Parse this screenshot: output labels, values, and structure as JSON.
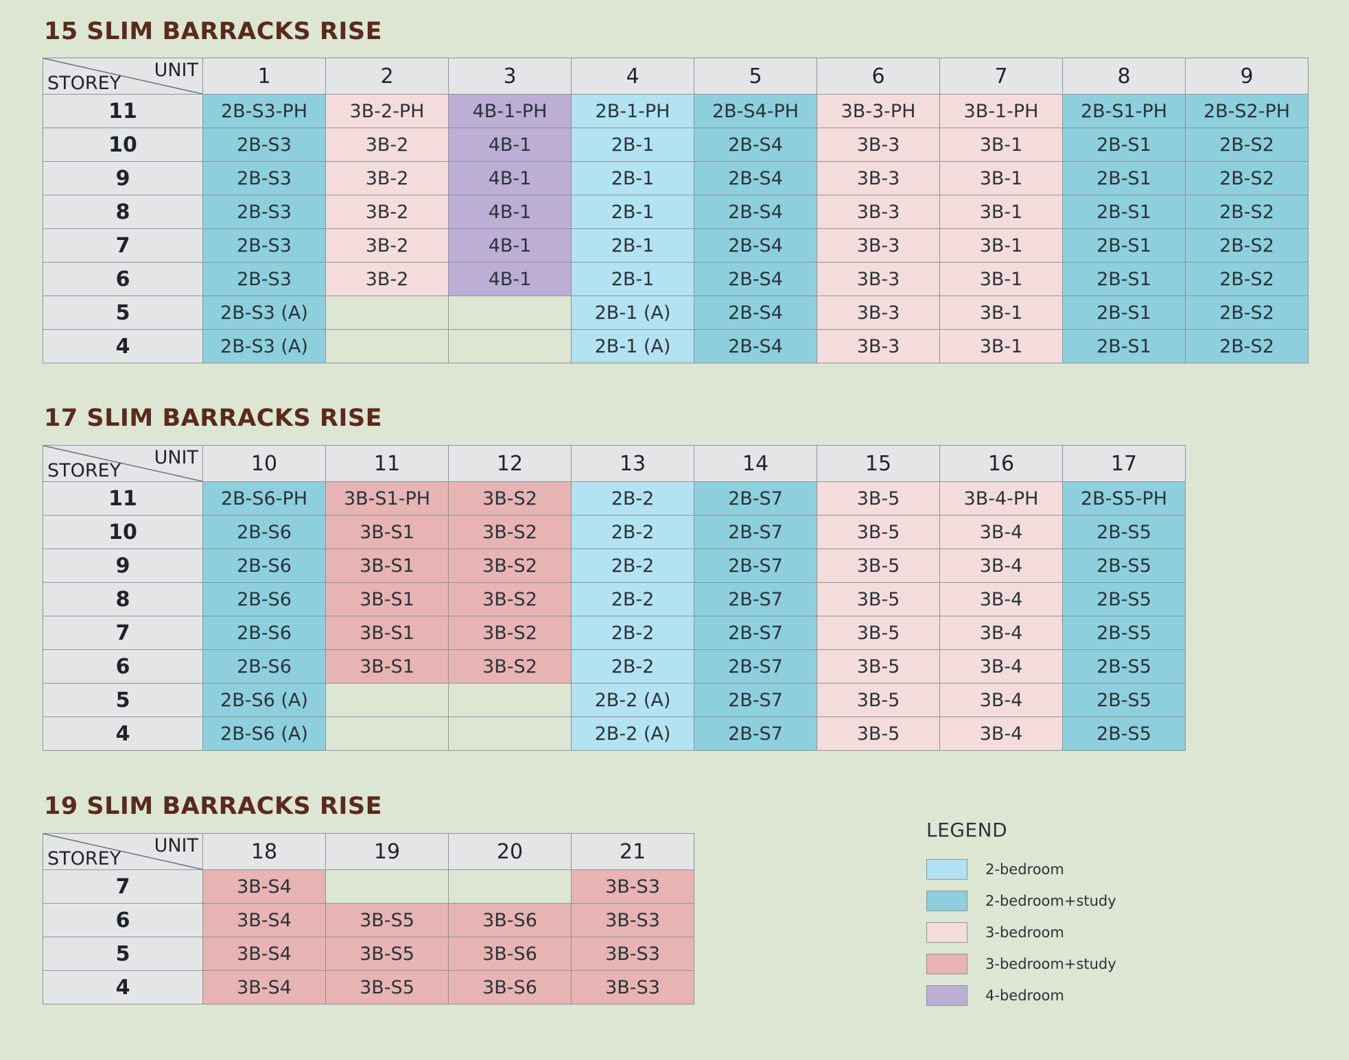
{
  "tables": [
    {
      "title": "15 SLIM BARRACKS RISE",
      "units": [
        "1",
        "2",
        "3",
        "4",
        "5",
        "6",
        "7",
        "8",
        "9"
      ],
      "rows": [
        {
          "storey": "11",
          "cells": [
            [
              "2B-S3-PH",
              "2bs"
            ],
            [
              "3B-2-PH",
              "3b"
            ],
            [
              "4B-1-PH",
              "4b"
            ],
            [
              "2B-1-PH",
              "2b"
            ],
            [
              "2B-S4-PH",
              "2bs"
            ],
            [
              "3B-3-PH",
              "3b"
            ],
            [
              "3B-1-PH",
              "3b"
            ],
            [
              "2B-S1-PH",
              "2bs"
            ],
            [
              "2B-S2-PH",
              "2bs"
            ]
          ]
        },
        {
          "storey": "10",
          "cells": [
            [
              "2B-S3",
              "2bs"
            ],
            [
              "3B-2",
              "3b"
            ],
            [
              "4B-1",
              "4b"
            ],
            [
              "2B-1",
              "2b"
            ],
            [
              "2B-S4",
              "2bs"
            ],
            [
              "3B-3",
              "3b"
            ],
            [
              "3B-1",
              "3b"
            ],
            [
              "2B-S1",
              "2bs"
            ],
            [
              "2B-S2",
              "2bs"
            ]
          ]
        },
        {
          "storey": "9",
          "cells": [
            [
              "2B-S3",
              "2bs"
            ],
            [
              "3B-2",
              "3b"
            ],
            [
              "4B-1",
              "4b"
            ],
            [
              "2B-1",
              "2b"
            ],
            [
              "2B-S4",
              "2bs"
            ],
            [
              "3B-3",
              "3b"
            ],
            [
              "3B-1",
              "3b"
            ],
            [
              "2B-S1",
              "2bs"
            ],
            [
              "2B-S2",
              "2bs"
            ]
          ]
        },
        {
          "storey": "8",
          "cells": [
            [
              "2B-S3",
              "2bs"
            ],
            [
              "3B-2",
              "3b"
            ],
            [
              "4B-1",
              "4b"
            ],
            [
              "2B-1",
              "2b"
            ],
            [
              "2B-S4",
              "2bs"
            ],
            [
              "3B-3",
              "3b"
            ],
            [
              "3B-1",
              "3b"
            ],
            [
              "2B-S1",
              "2bs"
            ],
            [
              "2B-S2",
              "2bs"
            ]
          ]
        },
        {
          "storey": "7",
          "cells": [
            [
              "2B-S3",
              "2bs"
            ],
            [
              "3B-2",
              "3b"
            ],
            [
              "4B-1",
              "4b"
            ],
            [
              "2B-1",
              "2b"
            ],
            [
              "2B-S4",
              "2bs"
            ],
            [
              "3B-3",
              "3b"
            ],
            [
              "3B-1",
              "3b"
            ],
            [
              "2B-S1",
              "2bs"
            ],
            [
              "2B-S2",
              "2bs"
            ]
          ]
        },
        {
          "storey": "6",
          "cells": [
            [
              "2B-S3",
              "2bs"
            ],
            [
              "3B-2",
              "3b"
            ],
            [
              "4B-1",
              "4b"
            ],
            [
              "2B-1",
              "2b"
            ],
            [
              "2B-S4",
              "2bs"
            ],
            [
              "3B-3",
              "3b"
            ],
            [
              "3B-1",
              "3b"
            ],
            [
              "2B-S1",
              "2bs"
            ],
            [
              "2B-S2",
              "2bs"
            ]
          ]
        },
        {
          "storey": "5",
          "cells": [
            [
              "2B-S3 (A)",
              "2bs"
            ],
            [
              "",
              "empty"
            ],
            [
              "",
              "empty"
            ],
            [
              "2B-1 (A)",
              "2b"
            ],
            [
              "2B-S4",
              "2bs"
            ],
            [
              "3B-3",
              "3b"
            ],
            [
              "3B-1",
              "3b"
            ],
            [
              "2B-S1",
              "2bs"
            ],
            [
              "2B-S2",
              "2bs"
            ]
          ]
        },
        {
          "storey": "4",
          "cells": [
            [
              "2B-S3 (A)",
              "2bs"
            ],
            [
              "",
              "empty"
            ],
            [
              "",
              "empty"
            ],
            [
              "2B-1 (A)",
              "2b"
            ],
            [
              "2B-S4",
              "2bs"
            ],
            [
              "3B-3",
              "3b"
            ],
            [
              "3B-1",
              "3b"
            ],
            [
              "2B-S1",
              "2bs"
            ],
            [
              "2B-S2",
              "2bs"
            ]
          ]
        }
      ]
    },
    {
      "title": "17 SLIM BARRACKS RISE",
      "units": [
        "10",
        "11",
        "12",
        "13",
        "14",
        "15",
        "16",
        "17"
      ],
      "rows": [
        {
          "storey": "11",
          "cells": [
            [
              "2B-S6-PH",
              "2bs"
            ],
            [
              "3B-S1-PH",
              "3bs"
            ],
            [
              "3B-S2",
              "3bs"
            ],
            [
              "2B-2",
              "2b"
            ],
            [
              "2B-S7",
              "2bs"
            ],
            [
              "3B-5",
              "3b"
            ],
            [
              "3B-4-PH",
              "3b"
            ],
            [
              "2B-S5-PH",
              "2bs"
            ]
          ]
        },
        {
          "storey": "10",
          "cells": [
            [
              "2B-S6",
              "2bs"
            ],
            [
              "3B-S1",
              "3bs"
            ],
            [
              "3B-S2",
              "3bs"
            ],
            [
              "2B-2",
              "2b"
            ],
            [
              "2B-S7",
              "2bs"
            ],
            [
              "3B-5",
              "3b"
            ],
            [
              "3B-4",
              "3b"
            ],
            [
              "2B-S5",
              "2bs"
            ]
          ]
        },
        {
          "storey": "9",
          "cells": [
            [
              "2B-S6",
              "2bs"
            ],
            [
              "3B-S1",
              "3bs"
            ],
            [
              "3B-S2",
              "3bs"
            ],
            [
              "2B-2",
              "2b"
            ],
            [
              "2B-S7",
              "2bs"
            ],
            [
              "3B-5",
              "3b"
            ],
            [
              "3B-4",
              "3b"
            ],
            [
              "2B-S5",
              "2bs"
            ]
          ]
        },
        {
          "storey": "8",
          "cells": [
            [
              "2B-S6",
              "2bs"
            ],
            [
              "3B-S1",
              "3bs"
            ],
            [
              "3B-S2",
              "3bs"
            ],
            [
              "2B-2",
              "2b"
            ],
            [
              "2B-S7",
              "2bs"
            ],
            [
              "3B-5",
              "3b"
            ],
            [
              "3B-4",
              "3b"
            ],
            [
              "2B-S5",
              "2bs"
            ]
          ]
        },
        {
          "storey": "7",
          "cells": [
            [
              "2B-S6",
              "2bs"
            ],
            [
              "3B-S1",
              "3bs"
            ],
            [
              "3B-S2",
              "3bs"
            ],
            [
              "2B-2",
              "2b"
            ],
            [
              "2B-S7",
              "2bs"
            ],
            [
              "3B-5",
              "3b"
            ],
            [
              "3B-4",
              "3b"
            ],
            [
              "2B-S5",
              "2bs"
            ]
          ]
        },
        {
          "storey": "6",
          "cells": [
            [
              "2B-S6",
              "2bs"
            ],
            [
              "3B-S1",
              "3bs"
            ],
            [
              "3B-S2",
              "3bs"
            ],
            [
              "2B-2",
              "2b"
            ],
            [
              "2B-S7",
              "2bs"
            ],
            [
              "3B-5",
              "3b"
            ],
            [
              "3B-4",
              "3b"
            ],
            [
              "2B-S5",
              "2bs"
            ]
          ]
        },
        {
          "storey": "5",
          "cells": [
            [
              "2B-S6 (A)",
              "2bs"
            ],
            [
              "",
              "empty"
            ],
            [
              "",
              "empty"
            ],
            [
              "2B-2 (A)",
              "2b"
            ],
            [
              "2B-S7",
              "2bs"
            ],
            [
              "3B-5",
              "3b"
            ],
            [
              "3B-4",
              "3b"
            ],
            [
              "2B-S5",
              "2bs"
            ]
          ]
        },
        {
          "storey": "4",
          "cells": [
            [
              "2B-S6 (A)",
              "2bs"
            ],
            [
              "",
              "empty"
            ],
            [
              "",
              "empty"
            ],
            [
              "2B-2 (A)",
              "2b"
            ],
            [
              "2B-S7",
              "2bs"
            ],
            [
              "3B-5",
              "3b"
            ],
            [
              "3B-4",
              "3b"
            ],
            [
              "2B-S5",
              "2bs"
            ]
          ]
        }
      ]
    },
    {
      "title": "19 SLIM BARRACKS RISE",
      "units": [
        "18",
        "19",
        "20",
        "21"
      ],
      "rows": [
        {
          "storey": "7",
          "cells": [
            [
              "3B-S4",
              "3bs"
            ],
            [
              "",
              "empty"
            ],
            [
              "",
              "empty"
            ],
            [
              "3B-S3",
              "3bs"
            ]
          ]
        },
        {
          "storey": "6",
          "cells": [
            [
              "3B-S4",
              "3bs"
            ],
            [
              "3B-S5",
              "3bs"
            ],
            [
              "3B-S6",
              "3bs"
            ],
            [
              "3B-S3",
              "3bs"
            ]
          ]
        },
        {
          "storey": "5",
          "cells": [
            [
              "3B-S4",
              "3bs"
            ],
            [
              "3B-S5",
              "3bs"
            ],
            [
              "3B-S6",
              "3bs"
            ],
            [
              "3B-S3",
              "3bs"
            ]
          ]
        },
        {
          "storey": "4",
          "cells": [
            [
              "3B-S4",
              "3bs"
            ],
            [
              "3B-S5",
              "3bs"
            ],
            [
              "3B-S6",
              "3bs"
            ],
            [
              "3B-S3",
              "3bs"
            ]
          ]
        }
      ]
    }
  ],
  "corner": {
    "unit": "UNIT",
    "storey": "STOREY"
  },
  "legend": {
    "title": "LEGEND",
    "items": [
      {
        "label": "2-bedroom",
        "color": "#b3e2f2"
      },
      {
        "label": "2-bedroom+study",
        "color": "#8dcfdd"
      },
      {
        "label": "3-bedroom",
        "color": "#f4dcdc"
      },
      {
        "label": "3-bedroom+study",
        "color": "#e7b3b3"
      },
      {
        "label": "4-bedroom",
        "color": "#bcaed4"
      }
    ]
  }
}
